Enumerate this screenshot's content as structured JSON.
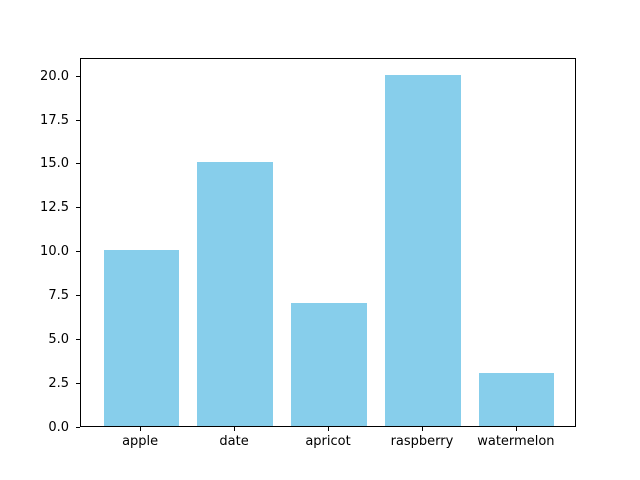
{
  "chart_data": {
    "type": "bar",
    "categories": [
      "apple",
      "date",
      "apricot",
      "raspberry",
      "watermelon"
    ],
    "values": [
      10,
      15,
      7,
      20,
      3
    ],
    "title": "",
    "xlabel": "",
    "ylabel": "",
    "ylim": [
      0,
      21
    ],
    "yticks": [
      0.0,
      2.5,
      5.0,
      7.5,
      10.0,
      12.5,
      15.0,
      17.5,
      20.0
    ],
    "ytick_labels": [
      "0.0",
      "2.5",
      "5.0",
      "7.5",
      "10.0",
      "12.5",
      "15.0",
      "17.5",
      "20.0"
    ],
    "bar_color": "#87CEEB",
    "bar_width_frac": 0.8,
    "grid": false,
    "legend": false,
    "axis_color": "#000000",
    "background_color": "#FFFFFF"
  }
}
